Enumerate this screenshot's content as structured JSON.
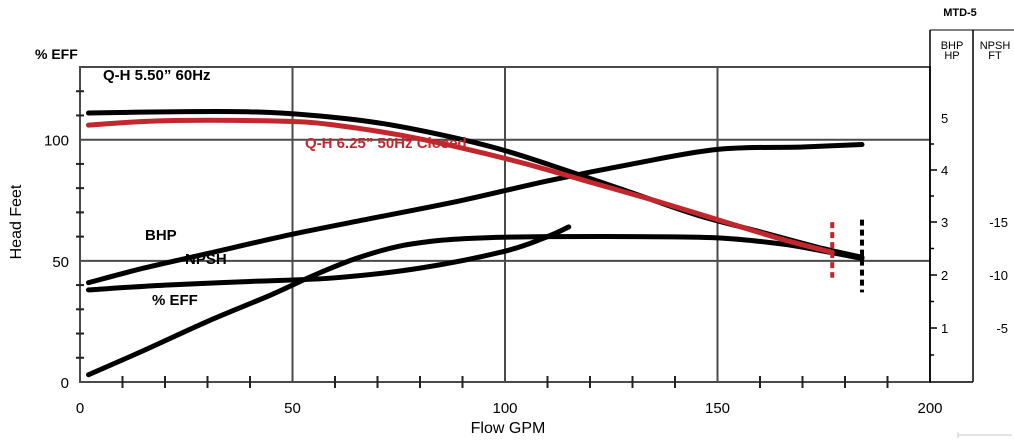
{
  "chart_data": {
    "type": "line",
    "model": "MTD-5",
    "xlabel": "Flow GPM",
    "ylabel": "Head Feet",
    "eff_axis_label": "% EFF",
    "xlim": [
      0,
      200
    ],
    "ylim": [
      0,
      130
    ],
    "x_ticks": [
      "0",
      "50",
      "100",
      "150",
      "200"
    ],
    "y_ticks": [
      "0",
      "50",
      "100"
    ],
    "bhp_header": [
      "BHP",
      "HP"
    ],
    "npsh_header": [
      "NPSH",
      "FT"
    ],
    "bhp_ticks": [
      "1",
      "2",
      "3",
      "4",
      "5"
    ],
    "npsh_ticks": [
      "-5",
      "-10",
      "-15"
    ],
    "grid": true,
    "series": [
      {
        "name": "Q-H 5.50” 60Hz",
        "color": "#000000",
        "label_color": "#000000",
        "points": [
          [
            2,
            111
          ],
          [
            20,
            111.5
          ],
          [
            40,
            111.5
          ],
          [
            55,
            110
          ],
          [
            70,
            107
          ],
          [
            85,
            102
          ],
          [
            100,
            95.5
          ],
          [
            115,
            87
          ],
          [
            130,
            78
          ],
          [
            145,
            69
          ],
          [
            160,
            62
          ],
          [
            175,
            55
          ],
          [
            184,
            51.5
          ]
        ]
      },
      {
        "name": "Q-H 6.25” 50Hz Closed",
        "color": "#c1272d",
        "label_color": "#c1272d",
        "points": [
          [
            2,
            106
          ],
          [
            15,
            107.5
          ],
          [
            30,
            108
          ],
          [
            50,
            107.5
          ],
          [
            60,
            106
          ],
          [
            75,
            102
          ],
          [
            90,
            96.5
          ],
          [
            105,
            90
          ],
          [
            120,
            82.5
          ],
          [
            135,
            75
          ],
          [
            150,
            67
          ],
          [
            165,
            59
          ],
          [
            177,
            53.5
          ]
        ]
      },
      {
        "name": "BHP",
        "color": "#000000",
        "label_color": "#000000",
        "points": [
          [
            2,
            41
          ],
          [
            15,
            47
          ],
          [
            30,
            53
          ],
          [
            50,
            61
          ],
          [
            70,
            68
          ],
          [
            90,
            75
          ],
          [
            110,
            83
          ],
          [
            130,
            90
          ],
          [
            150,
            96
          ],
          [
            170,
            97
          ],
          [
            184,
            98
          ]
        ]
      },
      {
        "name": "NPSH",
        "color": "#000000",
        "label_color": "#000000",
        "points": [
          [
            2,
            38
          ],
          [
            20,
            40
          ],
          [
            40,
            41.5
          ],
          [
            60,
            43
          ],
          [
            80,
            47
          ],
          [
            100,
            54
          ],
          [
            110,
            60
          ],
          [
            115,
            64
          ]
        ]
      },
      {
        "name": "% EFF",
        "color": "#000000",
        "label_color": "#000000",
        "points": [
          [
            2,
            3
          ],
          [
            15,
            13
          ],
          [
            30,
            25
          ],
          [
            45,
            36
          ],
          [
            55,
            44
          ],
          [
            65,
            51
          ],
          [
            75,
            56
          ],
          [
            85,
            58.5
          ],
          [
            95,
            59.5
          ],
          [
            110,
            60
          ],
          [
            130,
            60
          ],
          [
            150,
            59.5
          ],
          [
            165,
            57
          ],
          [
            175,
            54
          ],
          [
            184,
            51
          ]
        ]
      }
    ],
    "vertical_markers": [
      {
        "x": 177,
        "ymin": 43,
        "ymax": 66,
        "color": "#c1272d"
      },
      {
        "x": 184,
        "ymin": 37,
        "ymax": 67,
        "color": "#000000"
      }
    ]
  }
}
